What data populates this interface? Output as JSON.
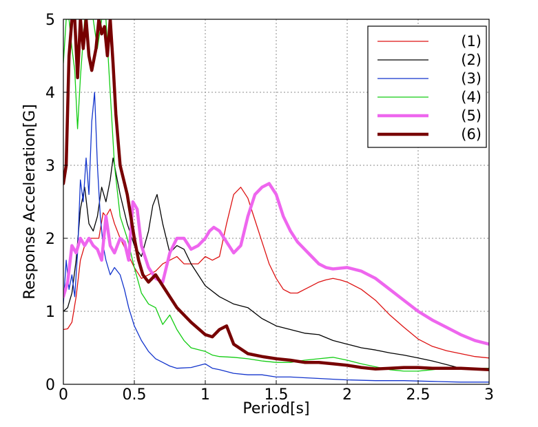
{
  "chart_data": {
    "type": "line",
    "title": "",
    "xlabel": "Period[s]",
    "ylabel": "Response Acceleration[G]",
    "xlim": [
      0,
      3
    ],
    "ylim": [
      0,
      5
    ],
    "xticks": [
      0,
      0.5,
      1,
      1.5,
      2,
      2.5,
      3
    ],
    "xtick_labels": [
      "0",
      "0.5",
      "1",
      "1.5",
      "2",
      "2.5",
      "3"
    ],
    "yticks": [
      0,
      1,
      2,
      3,
      4,
      5
    ],
    "ytick_labels": [
      "0",
      "1",
      "2",
      "3",
      "4",
      "5"
    ],
    "grid": true,
    "legend_position": "top-right",
    "series": [
      {
        "name": "(1)",
        "color": "#dd1111",
        "width": 1.3,
        "x": [
          0,
          0.03,
          0.06,
          0.09,
          0.12,
          0.15,
          0.18,
          0.21,
          0.25,
          0.28,
          0.3,
          0.33,
          0.36,
          0.4,
          0.45,
          0.5,
          0.55,
          0.6,
          0.65,
          0.7,
          0.75,
          0.8,
          0.85,
          0.9,
          0.95,
          1.0,
          1.05,
          1.1,
          1.15,
          1.2,
          1.25,
          1.3,
          1.35,
          1.4,
          1.45,
          1.5,
          1.55,
          1.6,
          1.65,
          1.7,
          1.75,
          1.8,
          1.85,
          1.9,
          1.95,
          2.0,
          2.1,
          2.2,
          2.3,
          2.4,
          2.5,
          2.6,
          2.7,
          2.8,
          2.9,
          3.0
        ],
        "y": [
          0.75,
          0.76,
          0.85,
          1.2,
          1.7,
          1.9,
          2.0,
          2.0,
          2.0,
          2.35,
          2.3,
          2.4,
          2.2,
          2.0,
          1.8,
          1.6,
          1.45,
          1.5,
          1.55,
          1.65,
          1.7,
          1.75,
          1.65,
          1.65,
          1.65,
          1.75,
          1.7,
          1.75,
          2.2,
          2.6,
          2.7,
          2.55,
          2.25,
          1.95,
          1.65,
          1.45,
          1.3,
          1.25,
          1.25,
          1.3,
          1.35,
          1.4,
          1.43,
          1.45,
          1.43,
          1.4,
          1.3,
          1.15,
          0.95,
          0.78,
          0.62,
          0.52,
          0.46,
          0.42,
          0.38,
          0.36
        ]
      },
      {
        "name": "(2)",
        "color": "#000000",
        "width": 1.3,
        "x": [
          0,
          0.03,
          0.06,
          0.09,
          0.12,
          0.15,
          0.18,
          0.21,
          0.24,
          0.27,
          0.3,
          0.33,
          0.35,
          0.37,
          0.4,
          0.45,
          0.5,
          0.55,
          0.6,
          0.63,
          0.66,
          0.7,
          0.75,
          0.8,
          0.85,
          0.9,
          1.0,
          1.1,
          1.2,
          1.3,
          1.4,
          1.5,
          1.6,
          1.7,
          1.8,
          1.9,
          2.0,
          2.1,
          2.2,
          2.3,
          2.4,
          2.5,
          2.6,
          2.7,
          2.8,
          2.9,
          3.0
        ],
        "y": [
          1.0,
          1.05,
          1.25,
          1.7,
          2.4,
          2.7,
          2.2,
          2.1,
          2.3,
          2.7,
          2.5,
          2.8,
          3.1,
          2.9,
          2.6,
          2.2,
          1.9,
          1.75,
          2.1,
          2.45,
          2.6,
          2.2,
          1.8,
          1.9,
          1.85,
          1.65,
          1.35,
          1.2,
          1.1,
          1.05,
          0.9,
          0.8,
          0.75,
          0.7,
          0.68,
          0.6,
          0.55,
          0.5,
          0.47,
          0.43,
          0.4,
          0.36,
          0.32,
          0.27,
          0.22,
          0.2,
          0.19
        ]
      },
      {
        "name": "(3)",
        "color": "#1133cc",
        "width": 1.3,
        "x": [
          0,
          0.02,
          0.04,
          0.06,
          0.08,
          0.1,
          0.12,
          0.14,
          0.16,
          0.18,
          0.2,
          0.22,
          0.24,
          0.26,
          0.28,
          0.3,
          0.33,
          0.36,
          0.4,
          0.43,
          0.46,
          0.5,
          0.55,
          0.6,
          0.65,
          0.7,
          0.75,
          0.8,
          0.9,
          1.0,
          1.05,
          1.1,
          1.2,
          1.3,
          1.4,
          1.5,
          1.6,
          1.7,
          1.8,
          1.9,
          2.0,
          2.2,
          2.4,
          2.6,
          2.8,
          3.0
        ],
        "y": [
          1.1,
          1.7,
          1.3,
          1.5,
          1.2,
          1.8,
          2.8,
          2.5,
          3.1,
          2.6,
          3.6,
          4.0,
          3.0,
          2.3,
          1.9,
          1.7,
          1.5,
          1.6,
          1.5,
          1.3,
          1.05,
          0.8,
          0.6,
          0.45,
          0.35,
          0.3,
          0.25,
          0.22,
          0.23,
          0.28,
          0.22,
          0.2,
          0.15,
          0.13,
          0.13,
          0.1,
          0.1,
          0.09,
          0.08,
          0.07,
          0.06,
          0.05,
          0.05,
          0.04,
          0.03,
          0.03
        ]
      },
      {
        "name": "(4)",
        "color": "#11cc11",
        "width": 1.3,
        "x": [
          0,
          0.02,
          0.04,
          0.06,
          0.08,
          0.1,
          0.12,
          0.15,
          0.18,
          0.21,
          0.24,
          0.27,
          0.3,
          0.33,
          0.36,
          0.4,
          0.45,
          0.5,
          0.55,
          0.6,
          0.65,
          0.7,
          0.75,
          0.8,
          0.85,
          0.9,
          1.0,
          1.05,
          1.1,
          1.2,
          1.3,
          1.4,
          1.5,
          1.6,
          1.7,
          1.8,
          1.9,
          2.0,
          2.1,
          2.2,
          2.3,
          2.4,
          2.5,
          2.6,
          2.7,
          2.8,
          2.9,
          3.0
        ],
        "y": [
          4.4,
          5.0,
          5.0,
          4.6,
          4.3,
          3.5,
          4.2,
          5.0,
          5.0,
          5.0,
          4.6,
          5.0,
          5.0,
          4.0,
          3.0,
          2.3,
          2.0,
          1.6,
          1.25,
          1.1,
          1.05,
          0.82,
          0.95,
          0.75,
          0.6,
          0.5,
          0.45,
          0.4,
          0.38,
          0.37,
          0.35,
          0.32,
          0.3,
          0.3,
          0.33,
          0.35,
          0.37,
          0.33,
          0.28,
          0.24,
          0.2,
          0.18,
          0.18,
          0.2,
          0.22,
          0.22,
          0.22,
          0.22
        ]
      },
      {
        "name": "(5)",
        "color": "#ee66ee",
        "width": 4.5,
        "x": [
          0,
          0.03,
          0.06,
          0.09,
          0.12,
          0.15,
          0.18,
          0.21,
          0.24,
          0.27,
          0.3,
          0.33,
          0.36,
          0.4,
          0.43,
          0.46,
          0.49,
          0.52,
          0.55,
          0.6,
          0.65,
          0.7,
          0.75,
          0.8,
          0.85,
          0.9,
          0.95,
          1.0,
          1.03,
          1.06,
          1.1,
          1.15,
          1.2,
          1.25,
          1.3,
          1.35,
          1.4,
          1.45,
          1.5,
          1.55,
          1.6,
          1.65,
          1.7,
          1.75,
          1.8,
          1.85,
          1.9,
          2.0,
          2.1,
          2.2,
          2.3,
          2.4,
          2.5,
          2.6,
          2.7,
          2.8,
          2.9,
          3.0
        ],
        "y": [
          1.2,
          1.4,
          1.9,
          1.8,
          2.0,
          1.9,
          2.0,
          1.9,
          1.85,
          1.7,
          2.3,
          1.9,
          1.8,
          2.0,
          1.95,
          1.7,
          2.5,
          2.4,
          1.9,
          1.6,
          1.45,
          1.4,
          1.8,
          2.0,
          2.0,
          1.85,
          1.9,
          2.0,
          2.1,
          2.15,
          2.1,
          1.95,
          1.8,
          1.9,
          2.3,
          2.6,
          2.7,
          2.75,
          2.6,
          2.3,
          2.1,
          1.95,
          1.85,
          1.75,
          1.65,
          1.6,
          1.58,
          1.6,
          1.55,
          1.45,
          1.3,
          1.15,
          1.0,
          0.88,
          0.78,
          0.68,
          0.6,
          0.55
        ]
      },
      {
        "name": "(6)",
        "color": "#770000",
        "width": 4.5,
        "x": [
          0,
          0.02,
          0.04,
          0.06,
          0.08,
          0.1,
          0.12,
          0.14,
          0.16,
          0.18,
          0.2,
          0.23,
          0.25,
          0.27,
          0.29,
          0.31,
          0.33,
          0.35,
          0.37,
          0.4,
          0.45,
          0.5,
          0.53,
          0.56,
          0.6,
          0.65,
          0.7,
          0.75,
          0.8,
          0.9,
          1.0,
          1.05,
          1.1,
          1.15,
          1.2,
          1.3,
          1.4,
          1.5,
          1.6,
          1.7,
          1.8,
          1.9,
          2.0,
          2.1,
          2.2,
          2.3,
          2.4,
          2.5,
          2.6,
          2.7,
          2.8,
          2.9,
          3.0
        ],
        "y": [
          2.75,
          3.0,
          4.5,
          5.0,
          5.0,
          4.2,
          5.0,
          4.6,
          5.0,
          4.5,
          4.3,
          4.6,
          5.0,
          4.8,
          4.9,
          4.5,
          5.0,
          4.4,
          3.7,
          3.0,
          2.6,
          2.0,
          1.7,
          1.5,
          1.4,
          1.5,
          1.35,
          1.2,
          1.05,
          0.85,
          0.68,
          0.65,
          0.75,
          0.8,
          0.55,
          0.42,
          0.38,
          0.35,
          0.33,
          0.3,
          0.3,
          0.28,
          0.26,
          0.23,
          0.21,
          0.22,
          0.23,
          0.23,
          0.22,
          0.22,
          0.22,
          0.21,
          0.2
        ]
      }
    ]
  }
}
